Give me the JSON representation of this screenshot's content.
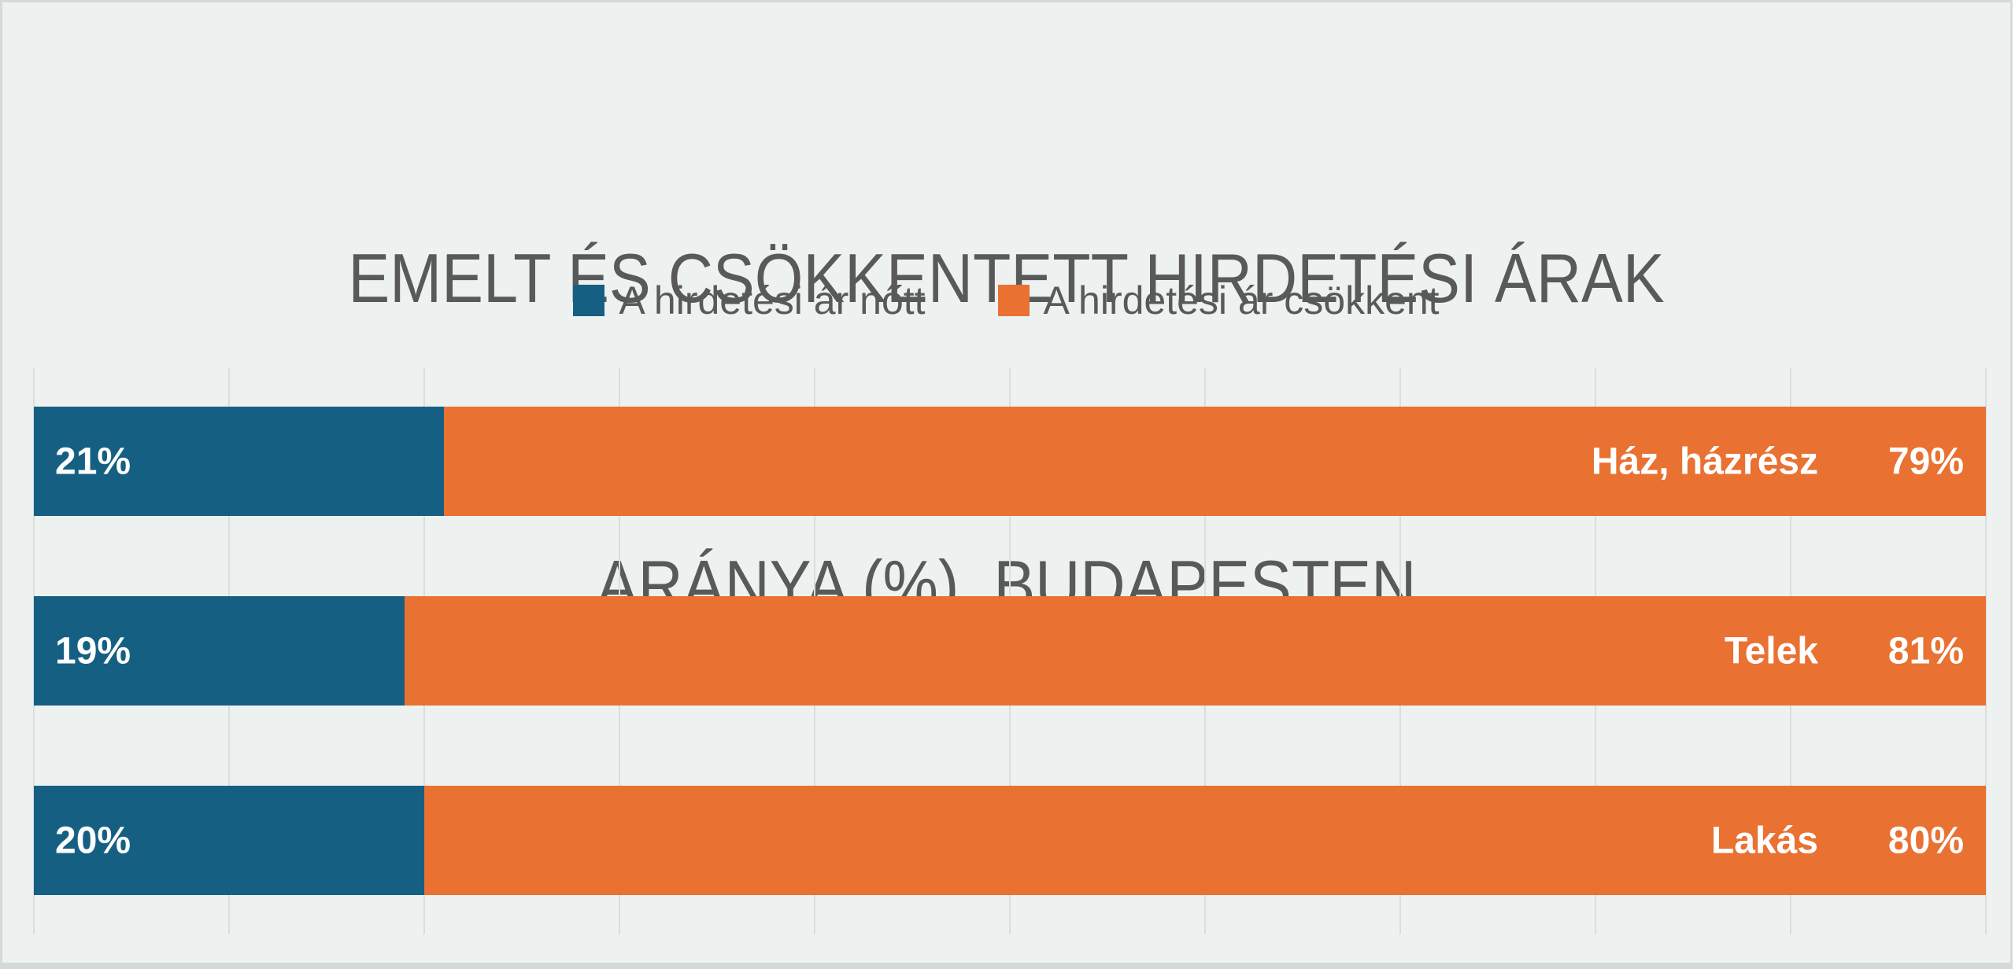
{
  "title": {
    "line1": "EMELT ÉS CSÖKKENTETT HIRDETÉSI ÁRAK",
    "line2": "ARÁNYA (%)  BUDAPESTEN"
  },
  "legend": {
    "items": [
      {
        "label": "A hirdetési ár nőtt",
        "color": "#156082"
      },
      {
        "label": "A hirdetési ár csökkent",
        "color": "#E97132"
      }
    ]
  },
  "colors": {
    "background": "#EDF2F0",
    "frame_border": "#D5DAD8",
    "title_text": "#595959",
    "gridline": "#DADEDC",
    "increase": "#156082",
    "decrease": "#E97132",
    "bar_label_text": "#FFFFFF"
  },
  "chart_data": {
    "type": "bar",
    "orientation": "horizontal",
    "stacked": true,
    "title": "EMELT ÉS CSÖKKENTETT HIRDETÉSI ÁRAK ARÁNYA (%) BUDAPESTEN",
    "legend_position": "top",
    "grid": true,
    "x_axis": {
      "min": 0,
      "max": 100,
      "gridline_step": 10,
      "tick_labels_visible": false
    },
    "categories": [
      "Ház, házrész",
      "Telek",
      "Lakás"
    ],
    "series": [
      {
        "name": "A hirdetési ár nőtt",
        "color": "#156082",
        "values": [
          21,
          19,
          20
        ]
      },
      {
        "name": "A hirdetési ár csökkent",
        "color": "#E97132",
        "values": [
          79,
          81,
          80
        ]
      }
    ]
  },
  "bars": [
    {
      "category": "Ház, házrész",
      "increase_label": "21%",
      "decrease_label": "79%",
      "increase_value": 21,
      "decrease_value": 79
    },
    {
      "category": "Telek",
      "increase_label": "19%",
      "decrease_label": "81%",
      "increase_value": 19,
      "decrease_value": 81
    },
    {
      "category": "Lakás",
      "increase_label": "20%",
      "decrease_label": "80%",
      "increase_value": 20,
      "decrease_value": 80
    }
  ]
}
